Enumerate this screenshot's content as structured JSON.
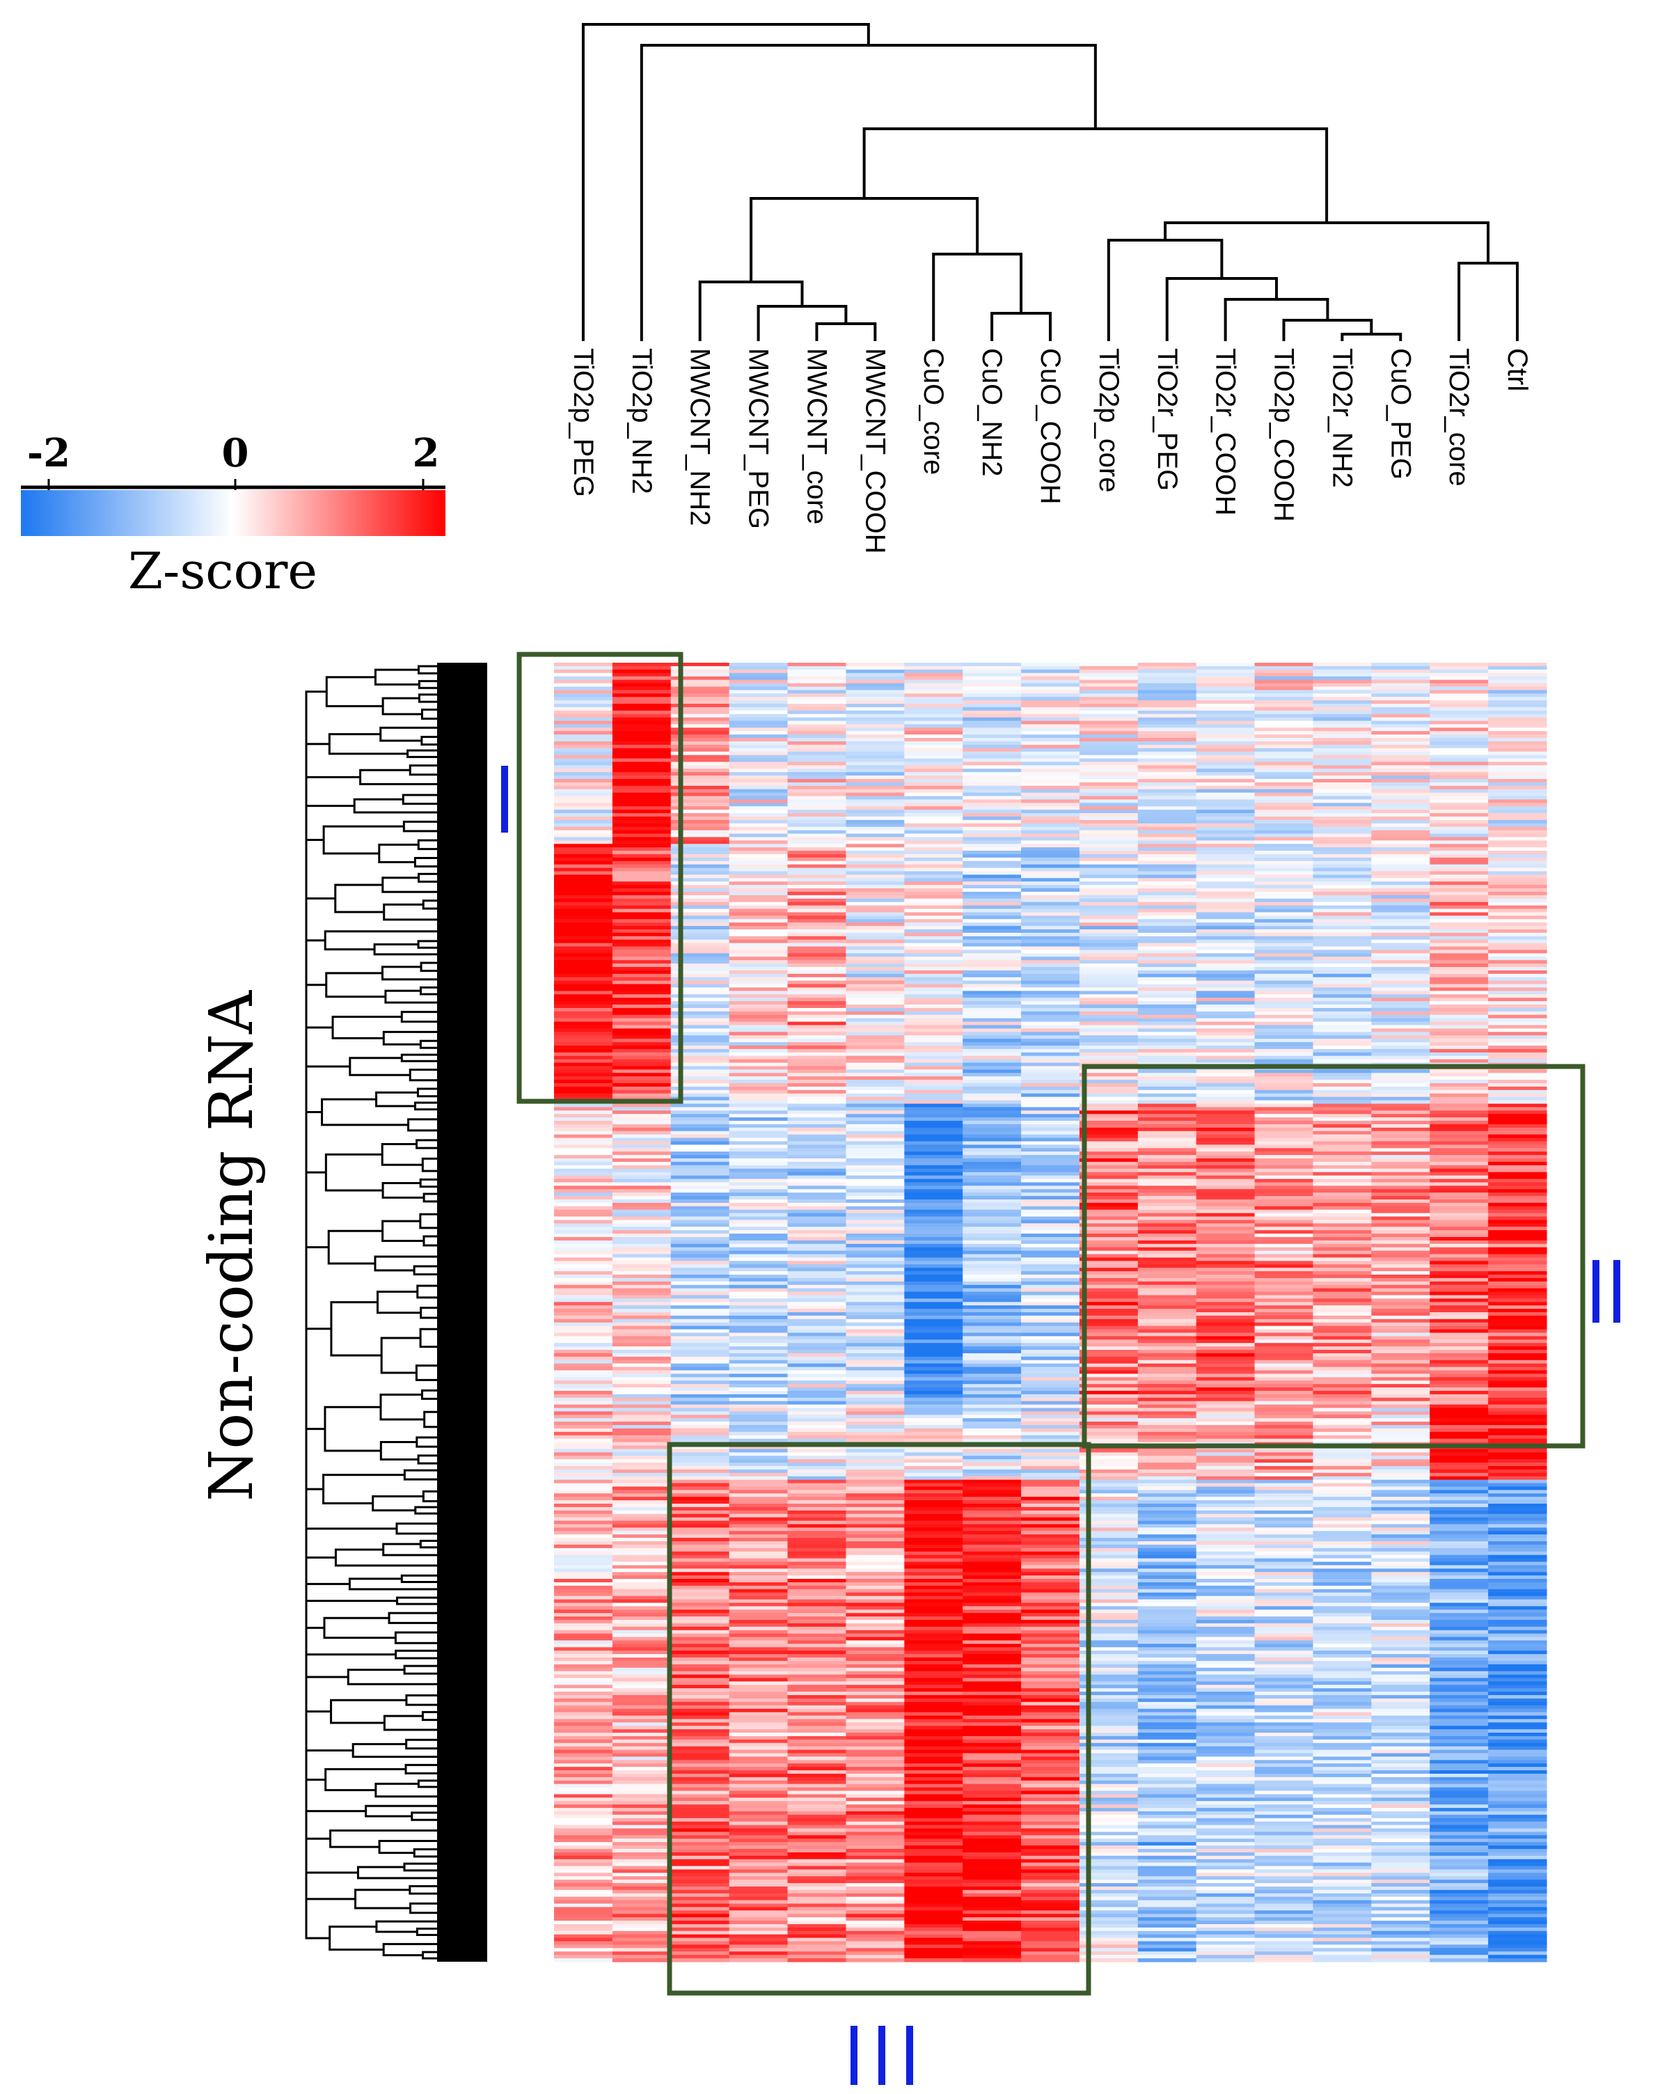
{
  "chart_data": {
    "type": "heatmap",
    "title": "",
    "ylabel": "Non-coding RNA",
    "columns": [
      "TiO2p_PEG",
      "TiO2p_NH2",
      "MWCNT_NH2",
      "MWCNT_PEG",
      "MWCNT_core",
      "MWCNT_COOH",
      "CuO_core",
      "CuO_NH2",
      "CuO_COOH",
      "TiO2p_core",
      "TiO2r_PEG",
      "TiO2r_COOH",
      "TiO2p_COOH",
      "TiO2r_NH2",
      "CuO_PEG",
      "TiO2r_core",
      "Ctrl"
    ],
    "colorbar": {
      "label": "Z-score",
      "min": -2,
      "max": 2,
      "ticks": [
        "-2",
        "0",
        "2"
      ],
      "low_color": "#1e78f0",
      "mid_color": "#ffffff",
      "high_color": "#ff0000"
    },
    "clusters": [
      {
        "label": "I",
        "columns": [
          "TiO2p_PEG",
          "TiO2p_NH2"
        ],
        "rows_fraction": [
          0.0,
          0.34
        ],
        "pattern": "up-regulated"
      },
      {
        "label": "II",
        "columns": [
          "TiO2p_core",
          "TiO2r_PEG",
          "TiO2r_COOH",
          "TiO2p_COOH",
          "TiO2r_NH2",
          "CuO_PEG",
          "TiO2r_core",
          "Ctrl"
        ],
        "rows_fraction": [
          0.31,
          0.61
        ],
        "pattern": "up-regulated"
      },
      {
        "label": "III",
        "columns": [
          "MWCNT_NH2",
          "MWCNT_PEG",
          "MWCNT_core",
          "MWCNT_COOH",
          "CuO_core",
          "CuO_NH2",
          "CuO_COOH"
        ],
        "rows_fraction": [
          0.61,
          1.0
        ],
        "pattern": "up-regulated"
      }
    ],
    "row_segments": [
      {
        "rows_fraction": [
          0.0,
          0.14
        ],
        "mean_z": [
          0.0,
          2.0,
          0.6,
          -0.2,
          0.0,
          -0.2,
          0.0,
          -0.2,
          0.0,
          0.0,
          -0.2,
          -0.2,
          0.0,
          -0.1,
          0.0,
          0.0,
          -0.1
        ]
      },
      {
        "rows_fraction": [
          0.14,
          0.34
        ],
        "mean_z": [
          2.0,
          1.5,
          -0.3,
          0.2,
          0.6,
          0.0,
          0.0,
          -0.5,
          -0.5,
          -0.2,
          -0.3,
          -0.3,
          -0.3,
          -0.3,
          -0.2,
          0.4,
          0.3
        ]
      },
      {
        "rows_fraction": [
          0.34,
          0.57
        ],
        "mean_z": [
          0.3,
          0.2,
          -0.6,
          -0.5,
          -0.4,
          -0.4,
          -1.8,
          -0.9,
          -0.6,
          1.1,
          1.0,
          1.1,
          0.8,
          0.8,
          0.7,
          1.1,
          1.6
        ]
      },
      {
        "rows_fraction": [
          0.57,
          0.63
        ],
        "mean_z": [
          0.5,
          0.2,
          0.1,
          -0.3,
          -0.2,
          -0.1,
          -0.3,
          -0.2,
          -0.2,
          0.6,
          0.5,
          0.3,
          0.6,
          0.3,
          0.2,
          1.8,
          1.8
        ]
      },
      {
        "rows_fraction": [
          0.63,
          1.0
        ],
        "mean_z": [
          0.6,
          0.6,
          1.1,
          1.0,
          1.0,
          0.9,
          2.0,
          1.7,
          1.3,
          -0.4,
          -0.8,
          -0.6,
          -0.5,
          -0.5,
          -0.5,
          -1.2,
          -1.5
        ]
      }
    ]
  }
}
